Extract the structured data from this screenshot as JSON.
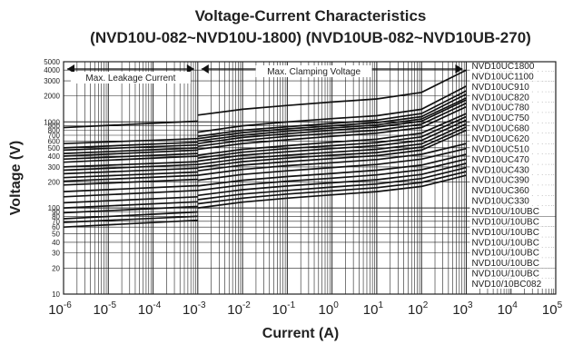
{
  "chart_data": {
    "type": "line",
    "title": "Voltage-Current Characteristics",
    "subtitle": "(NVD10U-082~NVD10U-1800) (NVD10UB-082~NVD10UB-270)",
    "xlabel": "Current (A)",
    "ylabel": "Voltage (V)",
    "x_scale": "log",
    "y_scale": "log",
    "xlim": [
      1e-06,
      100000.0
    ],
    "ylim": [
      10,
      5000
    ],
    "grid": true,
    "x_ticks": [
      {
        "base": "10",
        "exp": "-6",
        "value": 1e-06
      },
      {
        "base": "10",
        "exp": "-5",
        "value": 1e-05
      },
      {
        "base": "10",
        "exp": "-4",
        "value": 0.0001
      },
      {
        "base": "10",
        "exp": "-3",
        "value": 0.001
      },
      {
        "base": "10",
        "exp": "-2",
        "value": 0.01
      },
      {
        "base": "10",
        "exp": "-1",
        "value": 0.1
      },
      {
        "base": "10",
        "exp": "0",
        "value": 1
      },
      {
        "base": "10",
        "exp": "1",
        "value": 10
      },
      {
        "base": "10",
        "exp": "2",
        "value": 100
      },
      {
        "base": "10",
        "exp": "3",
        "value": 1000
      },
      {
        "base": "10",
        "exp": "4",
        "value": 10000
      },
      {
        "base": "10",
        "exp": "5",
        "value": 100000
      }
    ],
    "y_ticks": [
      5000,
      4000,
      3000,
      2000,
      1000,
      900,
      800,
      700,
      600,
      500,
      400,
      300,
      200,
      100,
      90,
      80,
      70,
      60,
      50,
      40,
      30,
      20,
      10
    ],
    "annotations": [
      {
        "text": "Max. Leakage Current",
        "x_range": [
          1e-06,
          0.001
        ]
      },
      {
        "text": "Max. Clamping Voltage",
        "x_range": [
          0.001,
          1000.0
        ]
      }
    ],
    "legend_position": "right",
    "legend_labels": [
      "NVD10UC1800",
      "NVD10UC1100",
      "NVD10UC910",
      "NVD10UC820",
      "NVD10UC780",
      "NVD10UC750",
      "NVD10UC680",
      "NVD10UC620",
      "NVD10UC510",
      "NVD10UC470",
      "NVD10UC430",
      "NVD10UC390",
      "NVD10UC360",
      "NVD10UC330",
      "NVD10U/10UBC",
      "NVD10U/10UBC",
      "NVD10U/10UBC",
      "NVD10U/10UBC",
      "NVD10U/10UBC",
      "NVD10U/10UBC",
      "NVD10U/10UBC",
      "NVD10/10BC082"
    ],
    "series": [
      {
        "name": "NVD10UC1800",
        "x": [
          1e-06,
          0.001
        ],
        "y": [
          860,
          1020
        ]
      },
      {
        "name": "NVD10UC1800",
        "x": [
          0.001,
          0.01,
          0.1,
          1,
          10,
          100,
          1000
        ],
        "y": [
          1200,
          1400,
          1550,
          1700,
          1850,
          2200,
          4000
        ]
      },
      {
        "name": "NVD10UC1100",
        "x": [
          1e-06,
          0.001
        ],
        "y": [
          560,
          640
        ]
      },
      {
        "name": "NVD10UC1100",
        "x": [
          0.001,
          0.01,
          0.1,
          1,
          10,
          100,
          1000
        ],
        "y": [
          760,
          900,
          1000,
          1090,
          1180,
          1400,
          2600
        ]
      },
      {
        "name": "NVD10UC910",
        "x": [
          1e-06,
          0.001
        ],
        "y": [
          500,
          580
        ]
      },
      {
        "name": "NVD10UC910",
        "x": [
          0.001,
          0.01,
          0.1,
          1,
          10,
          100,
          1000
        ],
        "y": [
          680,
          800,
          880,
          960,
          1050,
          1250,
          2300
        ]
      },
      {
        "name": "NVD10UC820",
        "x": [
          1e-06,
          0.001
        ],
        "y": [
          470,
          540
        ]
      },
      {
        "name": "NVD10UC820",
        "x": [
          0.001,
          0.01,
          0.1,
          1,
          10,
          100,
          1000
        ],
        "y": [
          640,
          750,
          830,
          900,
          980,
          1150,
          2100
        ]
      },
      {
        "name": "NVD10UC780",
        "x": [
          1e-06,
          0.001
        ],
        "y": [
          430,
          500
        ]
      },
      {
        "name": "NVD10UC780",
        "x": [
          0.001,
          0.01,
          0.1,
          1,
          10,
          100,
          1000
        ],
        "y": [
          600,
          700,
          780,
          850,
          920,
          1080,
          1900
        ]
      },
      {
        "name": "NVD10UC750",
        "x": [
          1e-06,
          0.001
        ],
        "y": [
          400,
          470
        ]
      },
      {
        "name": "NVD10UC750",
        "x": [
          0.001,
          0.01,
          0.1,
          1,
          10,
          100,
          1000
        ],
        "y": [
          560,
          660,
          730,
          800,
          870,
          1020,
          1800
        ]
      },
      {
        "name": "NVD10UC680",
        "x": [
          1e-06,
          0.001
        ],
        "y": [
          370,
          430
        ]
      },
      {
        "name": "NVD10UC680",
        "x": [
          0.001,
          0.01,
          0.1,
          1,
          10,
          100,
          1000
        ],
        "y": [
          520,
          610,
          680,
          740,
          800,
          940,
          1650
        ]
      },
      {
        "name": "NVD10UC620",
        "x": [
          1e-06,
          0.001
        ],
        "y": [
          340,
          400
        ]
      },
      {
        "name": "NVD10UC620",
        "x": [
          0.001,
          0.01,
          0.1,
          1,
          10,
          100,
          1000
        ],
        "y": [
          480,
          560,
          620,
          680,
          740,
          860,
          1500
        ]
      },
      {
        "name": "NVD10UC510",
        "x": [
          1e-06,
          0.001
        ],
        "y": [
          300,
          345
        ]
      },
      {
        "name": "NVD10UC510",
        "x": [
          0.001,
          0.01,
          0.1,
          1,
          10,
          100,
          1000
        ],
        "y": [
          410,
          480,
          530,
          580,
          630,
          740,
          1250
        ]
      },
      {
        "name": "NVD10UC470",
        "x": [
          1e-06,
          0.001
        ],
        "y": [
          275,
          320
        ]
      },
      {
        "name": "NVD10UC470",
        "x": [
          0.001,
          0.01,
          0.1,
          1,
          10,
          100,
          1000
        ],
        "y": [
          380,
          445,
          490,
          530,
          575,
          670,
          1150
        ]
      },
      {
        "name": "NVD10UC430",
        "x": [
          1e-06,
          0.001
        ],
        "y": [
          250,
          290
        ]
      },
      {
        "name": "NVD10UC430",
        "x": [
          0.001,
          0.01,
          0.1,
          1,
          10,
          100,
          1000
        ],
        "y": [
          350,
          410,
          450,
          490,
          530,
          610,
          1050
        ]
      },
      {
        "name": "NVD10UC390",
        "x": [
          1e-06,
          0.001
        ],
        "y": [
          225,
          262
        ]
      },
      {
        "name": "NVD10UC390",
        "x": [
          0.001,
          0.01,
          0.1,
          1,
          10,
          100,
          1000
        ],
        "y": [
          320,
          375,
          410,
          445,
          480,
          555,
          950
        ]
      },
      {
        "name": "NVD10UC360",
        "x": [
          1e-06,
          0.001
        ],
        "y": [
          205,
          240
        ]
      },
      {
        "name": "NVD10UC360",
        "x": [
          0.001,
          0.01,
          0.1,
          1,
          10,
          100,
          1000
        ],
        "y": [
          295,
          345,
          380,
          410,
          440,
          510,
          870
        ]
      },
      {
        "name": "NVD10UC330",
        "x": [
          1e-06,
          0.001
        ],
        "y": [
          185,
          215
        ]
      },
      {
        "name": "NVD10UC330",
        "x": [
          0.001,
          0.01,
          0.1,
          1,
          10,
          100,
          1000
        ],
        "y": [
          270,
          315,
          345,
          375,
          405,
          470,
          800
        ]
      },
      {
        "name": "NVD10U/10UBC",
        "x": [
          1e-06,
          0.001
        ],
        "y": [
          155,
          182
        ]
      },
      {
        "name": "NVD10U/10UBC",
        "x": [
          0.001,
          0.01,
          0.1,
          1,
          10,
          100,
          1000
        ],
        "y": [
          240,
          280,
          310,
          335,
          365,
          420,
          560
        ]
      },
      {
        "name": "NVD10U/10UBC",
        "x": [
          1e-06,
          0.001
        ],
        "y": [
          135,
          160
        ]
      },
      {
        "name": "NVD10U/10UBC",
        "x": [
          0.001,
          0.01,
          0.1,
          1,
          10,
          100,
          1000
        ],
        "y": [
          210,
          245,
          270,
          295,
          320,
          370,
          490
        ]
      },
      {
        "name": "NVD10U/10UBC",
        "x": [
          1e-06,
          0.001
        ],
        "y": [
          115,
          135
        ]
      },
      {
        "name": "NVD10U/10UBC",
        "x": [
          0.001,
          0.01,
          0.1,
          1,
          10,
          100,
          1000
        ],
        "y": [
          180,
          210,
          232,
          252,
          275,
          315,
          420
        ]
      },
      {
        "name": "NVD10U/10UBC",
        "x": [
          1e-06,
          0.001
        ],
        "y": [
          100,
          118
        ]
      },
      {
        "name": "NVD10U/10UBC",
        "x": [
          0.001,
          0.01,
          0.1,
          1,
          10,
          100,
          1000
        ],
        "y": [
          160,
          185,
          205,
          222,
          242,
          278,
          370
        ]
      },
      {
        "name": "NVD10U/10UBC",
        "x": [
          1e-06,
          0.001
        ],
        "y": [
          88,
          104
        ]
      },
      {
        "name": "NVD10U/10UBC",
        "x": [
          0.001,
          0.01,
          0.1,
          1,
          10,
          100,
          1000
        ],
        "y": [
          140,
          163,
          180,
          196,
          213,
          245,
          330
        ]
      },
      {
        "name": "NVD10U/10UBC",
        "x": [
          1e-06,
          0.001
        ],
        "y": [
          75,
          90
        ]
      },
      {
        "name": "NVD10U/10UBC",
        "x": [
          0.001,
          0.01,
          0.1,
          1,
          10,
          100,
          1000
        ],
        "y": [
          125,
          145,
          160,
          175,
          190,
          220,
          295
        ]
      },
      {
        "name": "NVD10U/10UBC",
        "x": [
          1e-06,
          0.001
        ],
        "y": [
          68,
          80
        ]
      },
      {
        "name": "NVD10U/10UBC",
        "x": [
          0.001,
          0.01,
          0.1,
          1,
          10,
          100,
          1000
        ],
        "y": [
          112,
          130,
          145,
          158,
          172,
          198,
          265
        ]
      },
      {
        "name": "NVD10/10BC082",
        "x": [
          1e-06,
          0.001
        ],
        "y": [
          60,
          72
        ]
      },
      {
        "name": "NVD10/10BC082",
        "x": [
          0.001,
          0.01,
          0.1,
          1,
          10,
          100,
          1000
        ],
        "y": [
          100,
          117,
          130,
          142,
          155,
          178,
          240
        ]
      }
    ]
  }
}
